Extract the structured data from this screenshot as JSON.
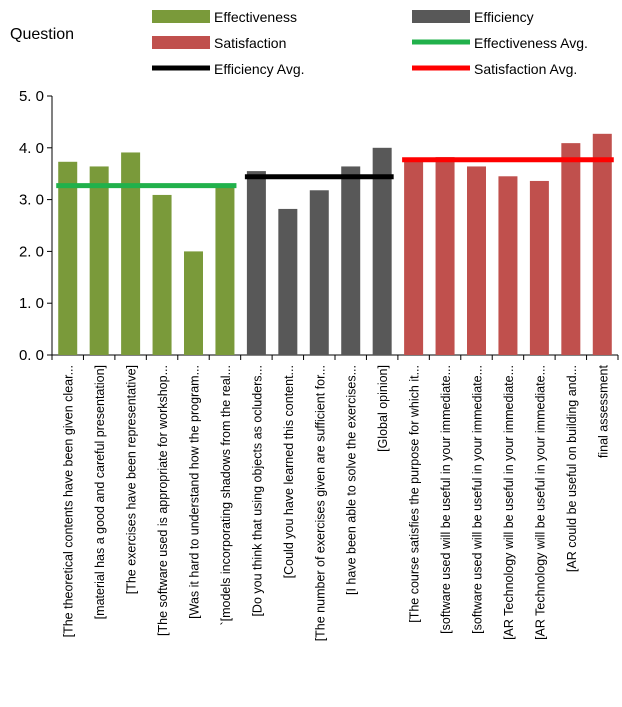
{
  "chart_data": {
    "type": "bar",
    "title": "Question",
    "ylim": [
      0,
      5
    ],
    "yticks": [
      "0. 0",
      "1. 0",
      "2. 0",
      "3. 0",
      "4. 0",
      "5. 0"
    ],
    "grid": false,
    "legend_position": "top",
    "categories": [
      "[The theoretical contents have been given clear...",
      "[material has a good and careful presentation]",
      "[The exercises have been representative]",
      "[The software used is appropriate for workshop...",
      "[Was it hard to understand how the program...",
      "`[models incorporating shadows from the real...",
      "[Do you think that using objects as ocluders...",
      "[Could you have learned this content...",
      "[The number of exercises given are sufficient for...",
      "[I have been able to solve the exercises...",
      "[Global opinion]",
      "[The course satisfies the purpose for which it...",
      "[software used will be useful in your immediate...",
      "[software used will be useful in your immediate...",
      "[AR Technology will be useful in your immediate...",
      "[AR Technology will be useful in your immediate...",
      "[AR could be useful on building and...",
      "final assessment"
    ],
    "values": [
      3.73,
      3.64,
      3.91,
      3.09,
      2.0,
      3.27,
      3.55,
      2.82,
      3.18,
      3.64,
      4.0,
      3.73,
      3.82,
      3.64,
      3.45,
      3.36,
      4.09,
      4.27
    ],
    "groups": [
      {
        "name": "Effectiveness",
        "start": 0,
        "end": 5,
        "color": "#7a9a3a"
      },
      {
        "name": "Efficiency",
        "start": 6,
        "end": 10,
        "color": "#585858"
      },
      {
        "name": "Satisfaction",
        "start": 11,
        "end": 17,
        "color": "#c0504d"
      }
    ],
    "averages": [
      {
        "name": "Effectiveness Avg.",
        "value": 3.27,
        "start": 0,
        "end": 5,
        "color": "#21b14b"
      },
      {
        "name": "Efficiency Avg.",
        "value": 3.44,
        "start": 6,
        "end": 10,
        "color": "#000000"
      },
      {
        "name": "Satisfaction Avg.",
        "value": 3.77,
        "start": 11,
        "end": 17,
        "color": "#ff0000"
      }
    ]
  }
}
